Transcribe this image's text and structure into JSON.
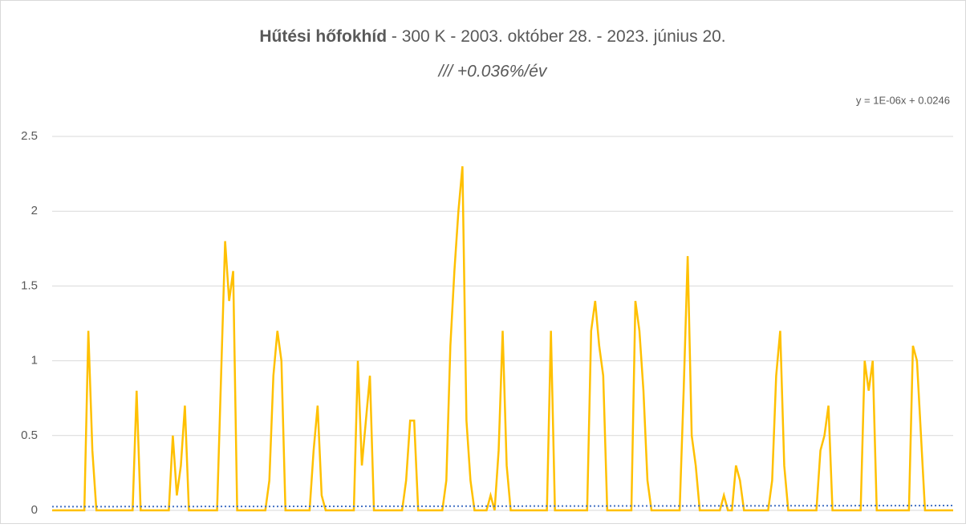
{
  "chart_data": {
    "type": "line",
    "title_bold": "Hűtési hőfokhíd",
    "title_rest": " - 300 K - 2003. október 28. - 2023. június 20.",
    "subtitle": "/// +0.036%/év",
    "color": "#ffc000",
    "values": [
      0,
      0,
      0,
      0,
      0,
      0,
      0,
      0,
      0,
      1.2,
      0.4,
      0,
      0,
      0,
      0,
      0,
      0,
      0,
      0,
      0,
      0,
      0.8,
      0,
      0,
      0,
      0,
      0,
      0,
      0,
      0,
      0.5,
      0.1,
      0.3,
      0.7,
      0,
      0,
      0,
      0,
      0,
      0,
      0,
      0,
      0.9,
      1.8,
      1.4,
      1.6,
      0,
      0,
      0,
      0,
      0,
      0,
      0,
      0,
      0.2,
      0.9,
      1.2,
      1.0,
      0,
      0,
      0,
      0,
      0,
      0,
      0,
      0.4,
      0.7,
      0.1,
      0,
      0,
      0,
      0,
      0,
      0,
      0,
      0,
      1.0,
      0.3,
      0.6,
      0.9,
      0,
      0,
      0,
      0,
      0,
      0,
      0,
      0,
      0.2,
      0.6,
      0.6,
      0,
      0,
      0,
      0,
      0,
      0,
      0,
      0.2,
      1.1,
      1.6,
      2.0,
      2.3,
      0.6,
      0.2,
      0,
      0,
      0,
      0,
      0.1,
      0,
      0.4,
      1.2,
      0.3,
      0,
      0,
      0,
      0,
      0,
      0,
      0,
      0,
      0,
      0,
      1.2,
      0,
      0,
      0,
      0,
      0,
      0,
      0,
      0,
      0,
      1.2,
      1.4,
      1.1,
      0.9,
      0,
      0,
      0,
      0,
      0,
      0,
      0,
      1.4,
      1.2,
      0.8,
      0.2,
      0,
      0,
      0,
      0,
      0,
      0,
      0,
      0,
      0.8,
      1.7,
      0.5,
      0.3,
      0,
      0,
      0,
      0,
      0,
      0,
      0.1,
      0,
      0,
      0.3,
      0.2,
      0,
      0,
      0,
      0,
      0,
      0,
      0,
      0.2,
      0.9,
      1.2,
      0.3,
      0,
      0,
      0,
      0,
      0,
      0,
      0,
      0,
      0.4,
      0.5,
      0.7,
      0,
      0,
      0,
      0,
      0,
      0,
      0,
      0,
      1.0,
      0.8,
      1.0,
      0,
      0,
      0,
      0,
      0,
      0,
      0,
      0,
      0,
      1.1,
      1.0,
      0.5,
      0,
      0,
      0,
      0,
      0,
      0,
      0,
      0
    ],
    "trendline": {
      "equation": "y = 1E-06x + 0.0246",
      "values": [
        0.0246,
        0.032
      ],
      "color": "#4472c4"
    },
    "ylim": [
      0,
      2.5
    ],
    "yticks": [
      0,
      0.5,
      1,
      1.5,
      2,
      2.5
    ],
    "grid": true
  }
}
